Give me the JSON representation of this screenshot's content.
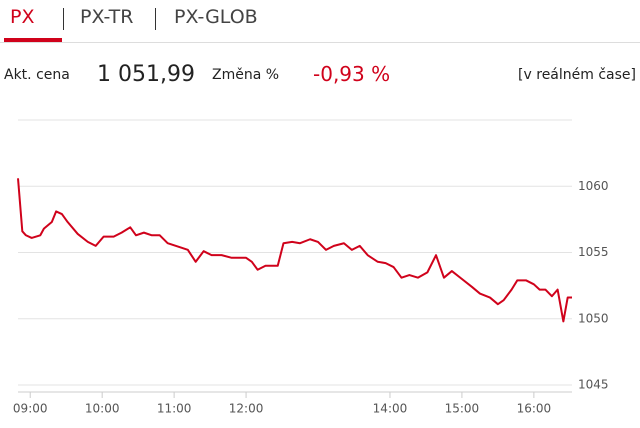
{
  "tabs": [
    "PX",
    "PX-TR",
    "PX-GLOB"
  ],
  "quote": {
    "price_label": "Akt. cena",
    "price": "1 051,99",
    "change_label": "Změna %",
    "change": "-0,93 %",
    "realtime": "[v reálném čase]"
  },
  "chart_data": {
    "type": "line",
    "color": "#d0021b",
    "grid": true,
    "xlim": [
      8.83,
      16.53
    ],
    "ylim": [
      1045,
      1065
    ],
    "yticks": [
      1045,
      1050,
      1055,
      1060
    ],
    "xticks": [
      {
        "value": 9,
        "label": "09:00"
      },
      {
        "value": 10,
        "label": "10:00"
      },
      {
        "value": 11,
        "label": "11:00"
      },
      {
        "value": 12,
        "label": "12:00"
      },
      {
        "value": 14,
        "label": "14:00"
      },
      {
        "value": 15,
        "label": "15:00"
      },
      {
        "value": 16,
        "label": "16:00"
      }
    ],
    "x": [
      8.83,
      8.89,
      8.94,
      9.02,
      9.14,
      9.19,
      9.3,
      9.36,
      9.44,
      9.52,
      9.66,
      9.8,
      9.91,
      10.02,
      10.16,
      10.27,
      10.39,
      10.47,
      10.58,
      10.69,
      10.8,
      10.91,
      11.08,
      11.19,
      11.3,
      11.41,
      11.52,
      11.66,
      11.8,
      12.0,
      12.08,
      12.16,
      12.27,
      12.44,
      12.52,
      12.64,
      12.75,
      12.89,
      13.0,
      13.11,
      13.22,
      13.36,
      13.47,
      13.58,
      13.69,
      13.83,
      13.94,
      14.05,
      14.16,
      14.27,
      14.39,
      14.52,
      14.64,
      14.75,
      14.86,
      15.0,
      15.14,
      15.25,
      15.39,
      15.5,
      15.58,
      15.69,
      15.77,
      15.89,
      16.0,
      16.08,
      16.16,
      16.25,
      16.33,
      16.41,
      16.47,
      16.53
    ],
    "series": [
      {
        "values": [
          1060.6,
          1056.6,
          1056.3,
          1056.1,
          1056.3,
          1056.8,
          1057.3,
          1058.1,
          1057.9,
          1057.3,
          1056.4,
          1055.8,
          1055.5,
          1056.2,
          1056.2,
          1056.5,
          1056.9,
          1056.3,
          1056.5,
          1056.3,
          1056.3,
          1055.7,
          1055.4,
          1055.2,
          1054.3,
          1055.1,
          1054.8,
          1054.8,
          1054.6,
          1054.6,
          1054.3,
          1053.7,
          1054.0,
          1054.0,
          1055.7,
          1055.8,
          1055.7,
          1056.0,
          1055.8,
          1055.2,
          1055.5,
          1055.7,
          1055.2,
          1055.5,
          1054.8,
          1054.3,
          1054.2,
          1053.9,
          1053.1,
          1053.3,
          1053.1,
          1053.5,
          1054.8,
          1053.1,
          1053.6,
          1053.0,
          1052.4,
          1051.9,
          1051.6,
          1051.1,
          1051.4,
          1052.2,
          1052.9,
          1052.9,
          1052.6,
          1052.2,
          1052.2,
          1051.7,
          1052.2,
          1049.8,
          1051.6,
          1051.6
        ]
      }
    ]
  }
}
